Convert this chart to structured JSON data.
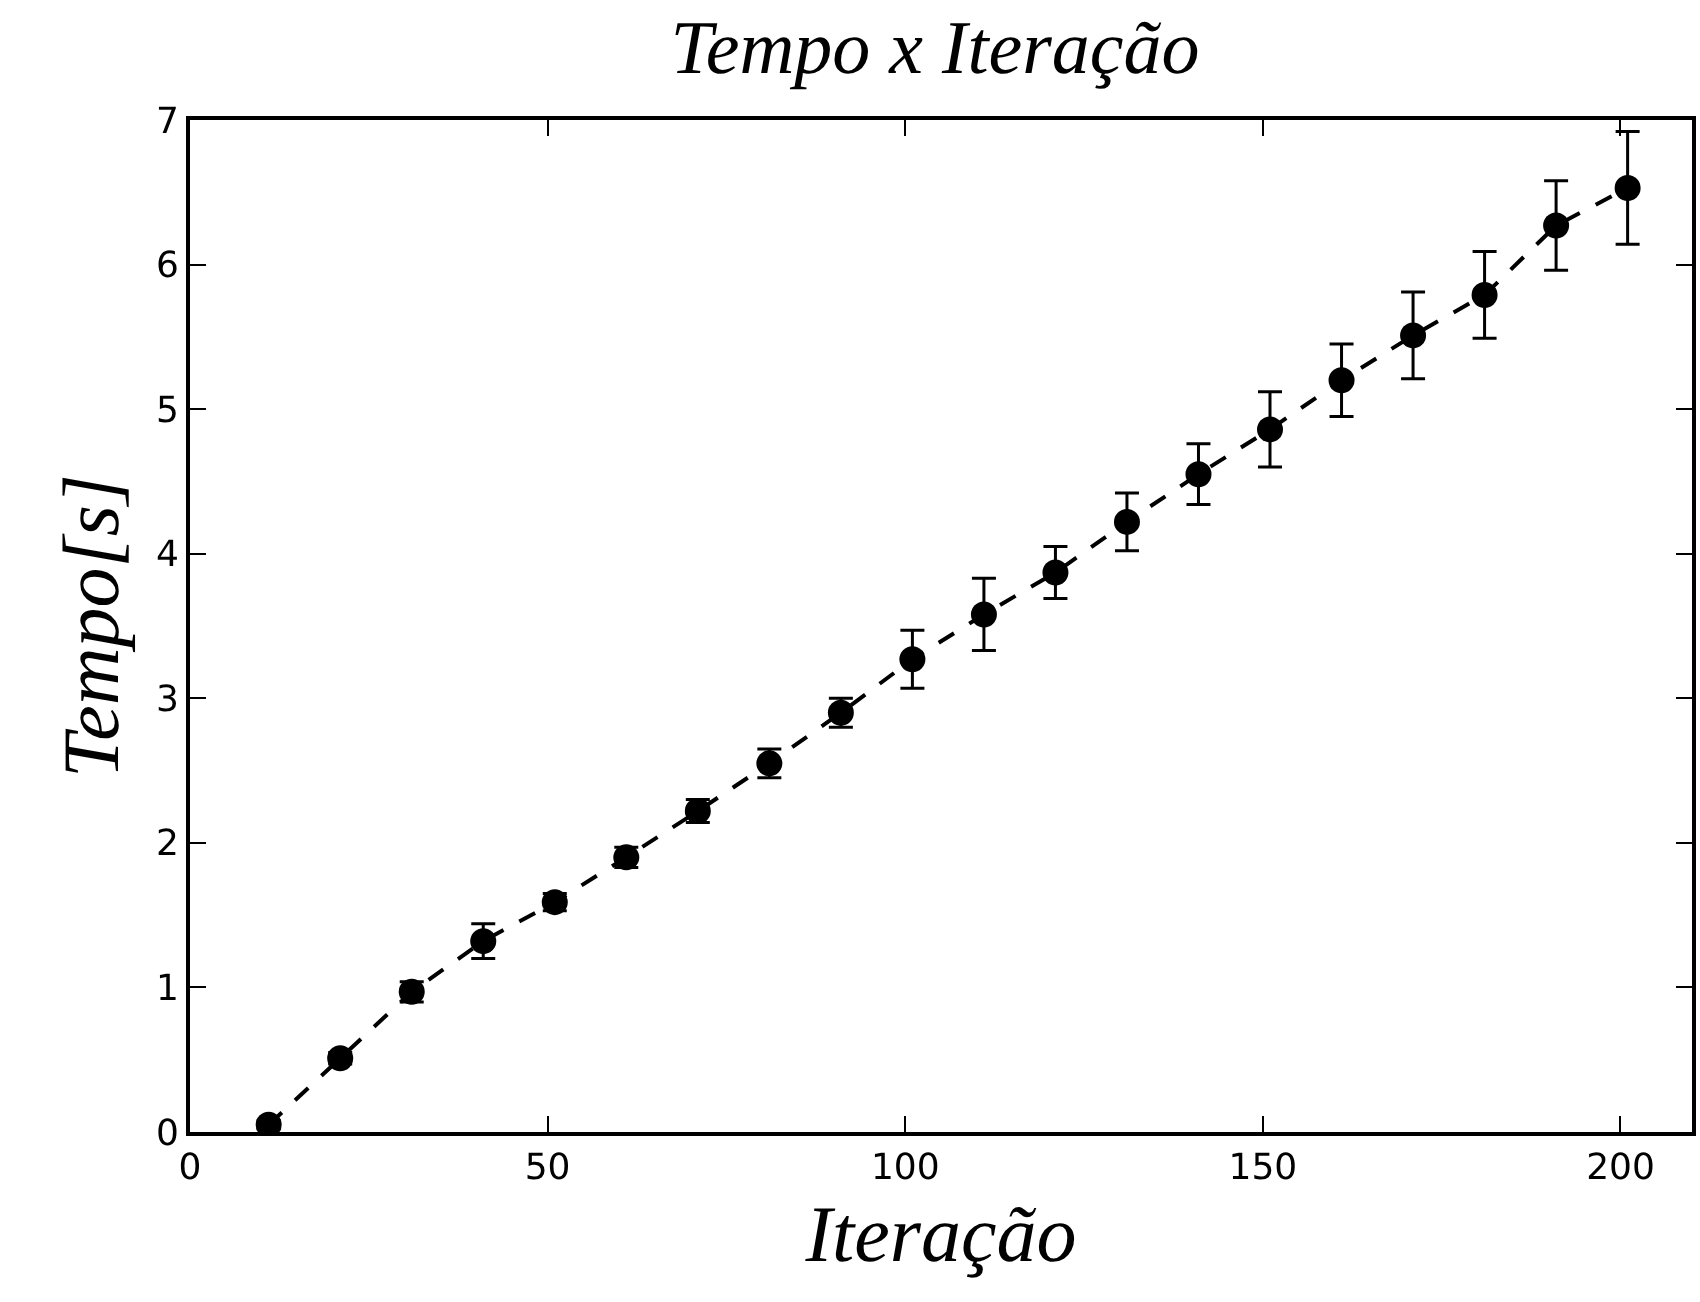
{
  "chart_data": {
    "type": "line",
    "title": "Tempo x Iteração",
    "xlabel": "Iteração",
    "ylabel": "Tempo[s]",
    "x": [
      11,
      21,
      31,
      41,
      51,
      61,
      71,
      81,
      91,
      101,
      111,
      121,
      131,
      141,
      151,
      161,
      171,
      181,
      191,
      201
    ],
    "series": [
      {
        "color": "#000000",
        "values": [
          0.05,
          0.51,
          0.97,
          1.32,
          1.59,
          1.9,
          2.22,
          2.55,
          2.9,
          3.27,
          3.58,
          3.87,
          4.22,
          4.55,
          4.86,
          5.2,
          5.51,
          5.79,
          6.27,
          6.53
        ],
        "errors": [
          0.03,
          0.04,
          0.07,
          0.12,
          0.06,
          0.07,
          0.08,
          0.1,
          0.1,
          0.2,
          0.25,
          0.18,
          0.2,
          0.21,
          0.26,
          0.25,
          0.3,
          0.3,
          0.31,
          0.39
        ]
      }
    ],
    "xlim": [
      0,
      210
    ],
    "xticks": [
      0,
      50,
      100,
      150,
      200
    ],
    "ylim": [
      0,
      7
    ],
    "yticks": [
      0,
      1,
      2,
      3,
      4,
      5,
      6,
      7
    ],
    "grid": false,
    "marker": "circle",
    "line_style": "dashed"
  }
}
